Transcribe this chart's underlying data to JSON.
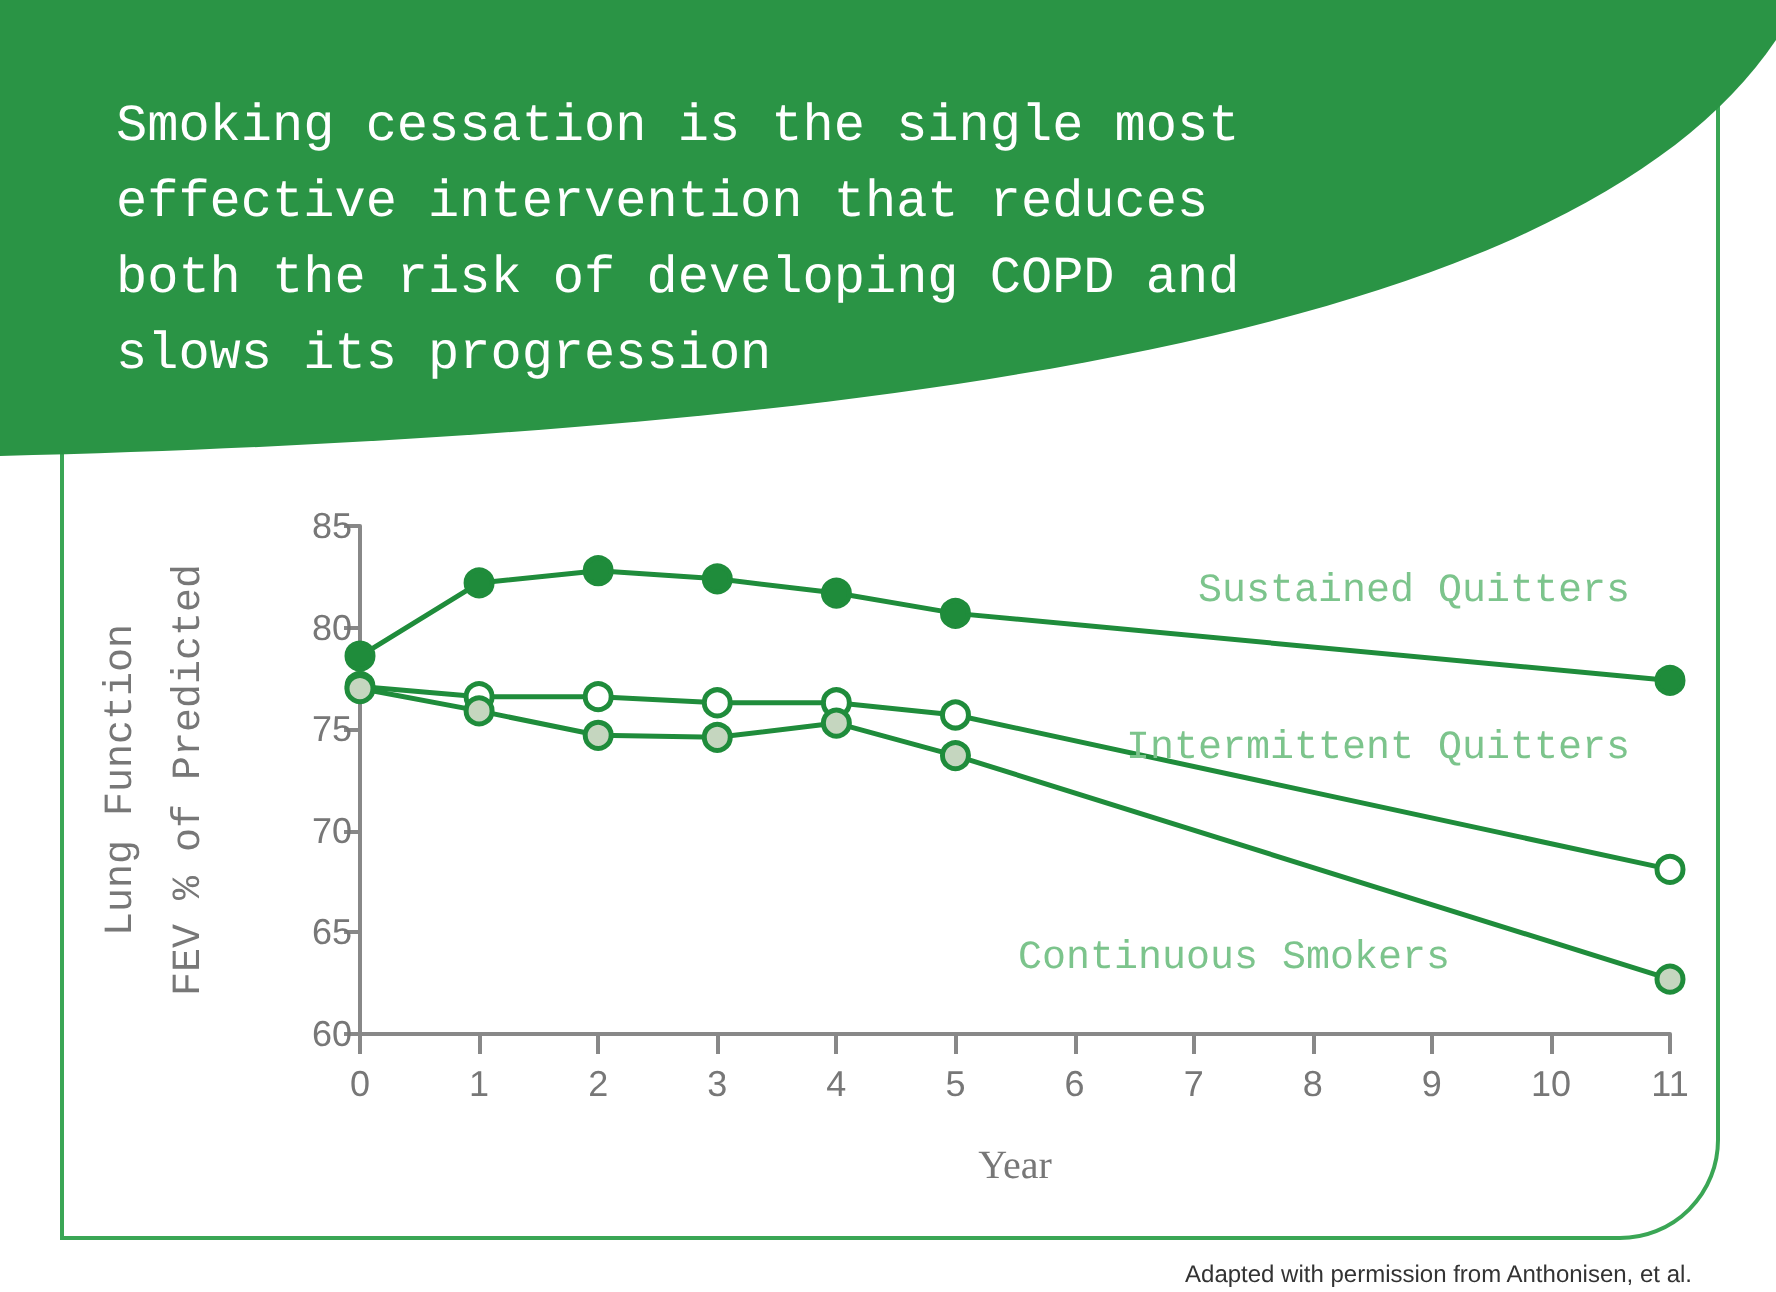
{
  "chart_data": {
    "type": "line",
    "title": "Smoking cessation is the single most effective intervention that reduces both the risk of developing COPD and slows its progression",
    "xlabel": "Year",
    "ylabel": "Lung Function\nFEV % of Predicted",
    "x": [
      0,
      1,
      2,
      3,
      4,
      5,
      11
    ],
    "xlim": [
      0,
      11
    ],
    "xticks": [
      0,
      1,
      2,
      3,
      4,
      5,
      6,
      7,
      8,
      9,
      10,
      11
    ],
    "ylim": [
      60,
      85
    ],
    "yticks": [
      60,
      65,
      70,
      75,
      80,
      85
    ],
    "series": [
      {
        "name": "Sustained Quitters",
        "color": "#1f8c3b",
        "values": [
          78.6,
          82.2,
          82.8,
          82.4,
          81.7,
          80.7,
          77.4
        ]
      },
      {
        "name": "Intermittent Quitters",
        "color": "#ffffff",
        "values": [
          77.1,
          76.6,
          76.6,
          76.3,
          76.3,
          75.7,
          68.1
        ]
      },
      {
        "name": "Continuous Smokers",
        "color": "#c5d6bf",
        "values": [
          77.0,
          75.9,
          74.7,
          74.6,
          75.3,
          73.7,
          62.7
        ]
      }
    ],
    "marker": "circle",
    "line_style": "solid",
    "grid": false,
    "legend": false,
    "annotations": [
      "Adapted with permission from Anthonisen, et al."
    ]
  }
}
